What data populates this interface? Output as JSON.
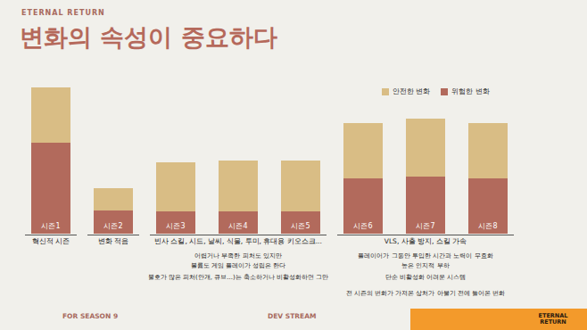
{
  "header": {
    "logo": "ETERNAL RETURN",
    "title": "변화의 속성이 중요하다"
  },
  "chart_data": {
    "type": "bar",
    "stacked": true,
    "categories": [
      "시즌1",
      "시즌2",
      "시즌3",
      "시즌4",
      "시즌5",
      "시즌6",
      "시즌7",
      "시즌8"
    ],
    "series": [
      {
        "name": "위험한 변화",
        "color": "#b26a5c",
        "values": [
          102,
          26,
          25,
          25,
          25,
          62,
          64,
          62
        ]
      },
      {
        "name": "안전한 변화",
        "color": "#d9bd85",
        "values": [
          62,
          25,
          55,
          57,
          57,
          62,
          65,
          62
        ]
      }
    ],
    "ylim": [
      0,
      170
    ],
    "tick_labels": "x",
    "legend": "upper right"
  },
  "groups": [
    {
      "label": "혁신적 시즌",
      "categories": [
        "시즌1"
      ],
      "notes": []
    },
    {
      "label": "변화 적음",
      "categories": [
        "시즌2"
      ],
      "notes": []
    },
    {
      "label": "빈사 스킬, 시드, 날씨, 식물, 투미, 휴대용 키오스크...",
      "categories": [
        "시즌3",
        "시즌4",
        "시즌5"
      ],
      "notes": [
        "어렵거나 부족한 피처도 있지만",
        "볼륨도 게임 플레이가 성립은 한다",
        "불호가 많은 피처(안개, 큐브...)는 축소하거나 비활성화하면 그만"
      ]
    },
    {
      "label": "VLS, 사출 방지, 스킬 가속",
      "categories": [
        "시즌6",
        "시즌7",
        "시즌8"
      ],
      "notes": [
        "플레이어가 그동안 투입한 시간과 노력이 무효화",
        "높은 인지적 부하",
        "단순 비활성화 어려운 시스템",
        "전 시즌의 변화가 가져온 상처가 아물기 전에 들어온 변화"
      ]
    }
  ],
  "footer": {
    "left": "FOR SEASON 9",
    "center": "DEV STREAM",
    "overlay_logo": "ETERNAL RETURN"
  }
}
